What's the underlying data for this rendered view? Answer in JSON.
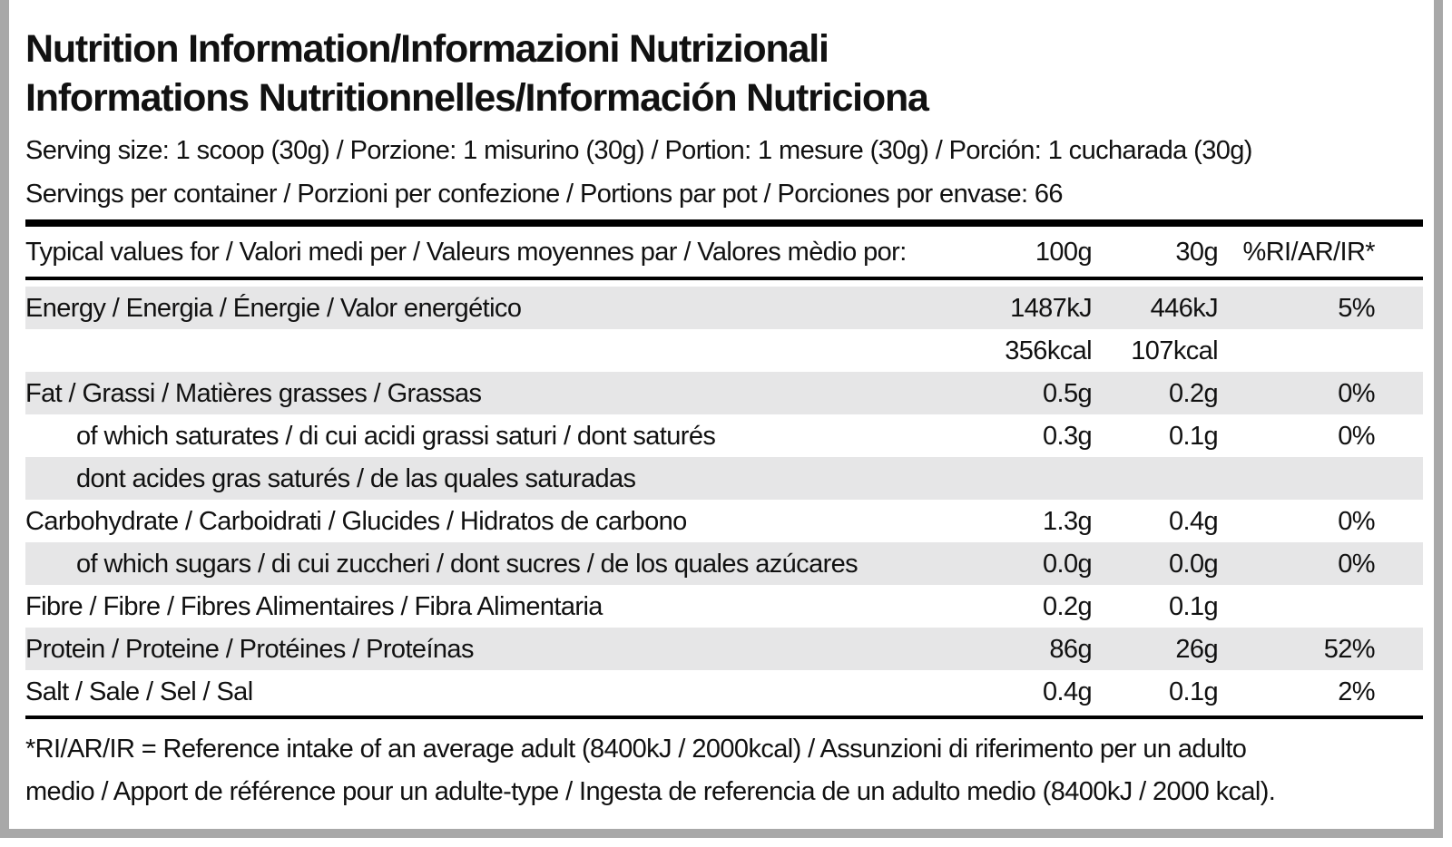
{
  "header": {
    "title_lines": [
      "Nutrition Information/Informazioni Nutrizionali",
      "Informations Nutritionnelles/Información Nutriciona"
    ],
    "info_lines": [
      "Serving size: 1 scoop (30g) / Porzione: 1 misurino (30g) / Portion: 1 mesure (30g) / Porción: 1 cucharada (30g)",
      "Servings per container / Porzioni per confezione / Portions par pot / Porciones por envase: 66"
    ]
  },
  "table": {
    "header": [
      "Typical values for / Valori medi per / Valeurs moyennes par / Valores mèdio por:",
      "100g",
      "30g",
      "%RI/AR/IR*"
    ],
    "rows": [
      {
        "label": "Energy / Energia / Énergie / Valor energético",
        "per100": "1487kJ",
        "per30": "446kJ",
        "ri": "5%"
      },
      {
        "per100": "356kcal",
        "per30": "107kcal"
      },
      {
        "label": "Fat / Grassi / Matières grasses / Grassas",
        "per100": "0.5g",
        "per30": "0.2g",
        "ri": "0%"
      },
      {
        "label": "of which saturates / di cui acidi grassi saturi / dont saturés",
        "per100": "0.3g",
        "per30": "0.1g",
        "ri": "0%",
        "indent": true
      },
      {
        "label": "dont acides gras saturés / de las quales saturadas",
        "indent": true
      },
      {
        "label": "Carbohydrate / Carboidrati / Glucides / Hidratos de carbono",
        "per100": "1.3g",
        "per30": "0.4g",
        "ri": "0%"
      },
      {
        "label": "of which sugars / di cui zuccheri / dont sucres / de los quales azúcares",
        "per100": "0.0g",
        "per30": "0.0g",
        "ri": "0%",
        "indent": true
      },
      {
        "label": "Fibre / Fibre / Fibres Alimentaires / Fibra Alimentaria",
        "per100": "0.2g",
        "per30": "0.1g"
      },
      {
        "label": "Protein / Proteine / Protéines / Proteínas",
        "per100": "86g",
        "per30": "26g",
        "ri": "52%"
      },
      {
        "label": "Salt / Sale / Sel / Sal",
        "per100": "0.4g",
        "per30": "0.1g",
        "ri": "2%"
      }
    ]
  },
  "footnote_lines": [
    "*RI/AR/IR = Reference intake of an average adult (8400kJ / 2000kcal) / Assunzioni di riferimento per un adulto",
    "medio / Apport de référence pour un adulte-type / Ingesta de referencia de un adulto medio (8400kJ / 2000 kcal)."
  ]
}
